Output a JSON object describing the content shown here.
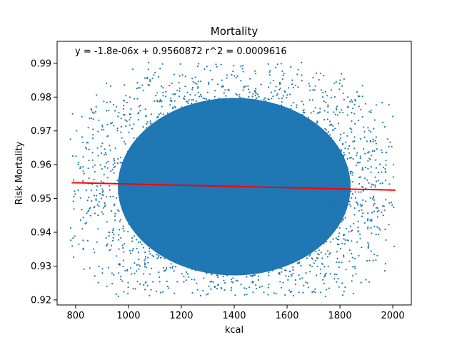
{
  "chart_data": {
    "type": "scatter",
    "title": "Mortality",
    "xlabel": "kcal",
    "ylabel": "Risk Mortality",
    "xlim": [
      730,
      2070
    ],
    "ylim": [
      0.9185,
      0.9965
    ],
    "xticks": [
      800,
      1000,
      1200,
      1400,
      1600,
      1800,
      2000
    ],
    "yticks": [
      0.92,
      0.93,
      0.94,
      0.95,
      0.96,
      0.97,
      0.98,
      0.99
    ],
    "xtick_labels": [
      "800",
      "1000",
      "1200",
      "1400",
      "1600",
      "1800",
      "2000"
    ],
    "ytick_labels": [
      "0.92",
      "0.93",
      "0.94",
      "0.95",
      "0.96",
      "0.97",
      "0.98",
      "0.99"
    ],
    "grid": false,
    "annotation": "y = -1.8e-06x + 0.9560872  r^2 = 0.0009616",
    "scatter_cloud": {
      "x_center": 1400,
      "x_spread": 310,
      "y_center": 0.9535,
      "y_spread": 0.0175,
      "x_range": [
        780,
        2010
      ],
      "y_range": [
        0.921,
        0.9905
      ]
    },
    "fit_line": {
      "slope": -1.8e-06,
      "intercept": 0.9560872,
      "x_start": 785,
      "x_end": 2010
    },
    "colors": {
      "points": "#1f77b4",
      "fit_line": "#ff0000",
      "axes": "#000000"
    }
  }
}
